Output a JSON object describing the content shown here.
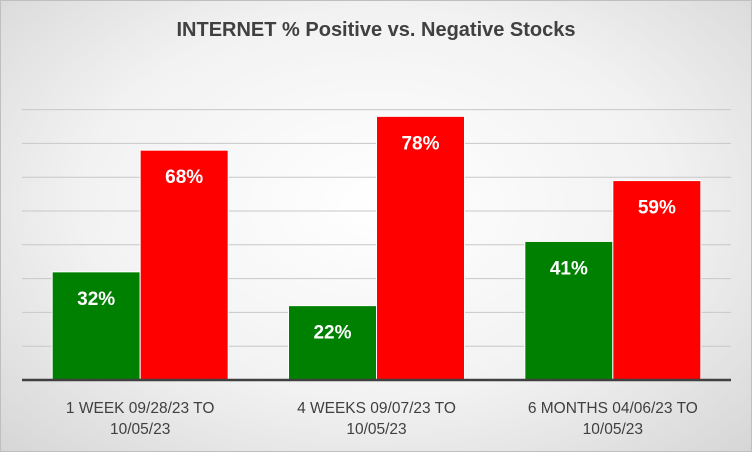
{
  "chart_data": {
    "type": "bar",
    "title": "INTERNET % Positive vs. Negative Stocks",
    "categories": [
      [
        "1 WEEK 09/28/23 TO",
        "10/05/23"
      ],
      [
        "4 WEEKS 09/07/23 TO",
        "10/05/23"
      ],
      [
        "6 MONTHS 04/06/23 TO",
        "10/05/23"
      ]
    ],
    "series": [
      {
        "values": [
          32,
          22,
          41
        ],
        "labels": [
          "32%",
          "22%",
          "41%"
        ],
        "color": "#008000"
      },
      {
        "values": [
          68,
          78,
          59
        ],
        "labels": [
          "68%",
          "78%",
          "59%"
        ],
        "color": "#ff0000"
      }
    ],
    "ylim": [
      0,
      80
    ],
    "grid": true,
    "legend": "none"
  }
}
